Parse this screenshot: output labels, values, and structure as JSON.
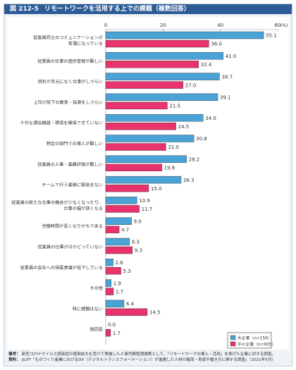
{
  "figure": {
    "number": "図 212-5",
    "title": "リモートワークを活用する上での課題（複数回答）"
  },
  "chart_data": {
    "type": "bar",
    "orientation": "horizontal",
    "unit": "(%)",
    "xlim": [
      0,
      60
    ],
    "xticks": [
      0,
      20,
      40,
      60
    ],
    "grid": false,
    "legend_position": "bottom-right",
    "categories": [
      [
        "従業員同士のコミュニケーションが",
        "希薄になっている"
      ],
      [
        "従業員の仕事の進捗管理が難しい"
      ],
      [
        "資料が手元になく仕事がしづらい"
      ],
      [
        "上司が部下の教育・指導をしづらい"
      ],
      [
        "十分な通信機器・環境を確保できていない"
      ],
      [
        "特定の部門での導入が難しい"
      ],
      [
        "従業員の人事・業績評価が難しい"
      ],
      [
        "チームで行う業務に馴染まない"
      ],
      [
        "従業員の新たな仕事の機会が少なくなったり、",
        "仕事の幅が狭くなる"
      ],
      [
        "労働時間が長くなりがちである"
      ],
      [
        "従業員の仕事がはかどっていない"
      ],
      [
        "従業員の会社への帰属意識が低下している"
      ],
      [
        "その他"
      ],
      [
        "特に課題はない"
      ],
      [
        "無回答"
      ]
    ],
    "series": [
      {
        "name": "大企業（n=156）",
        "color": "#4aa3d6",
        "values": [
          55.1,
          41.0,
          39.7,
          39.1,
          34.0,
          30.8,
          28.2,
          26.3,
          10.9,
          9.0,
          8.3,
          2.6,
          1.9,
          6.4,
          0.0
        ]
      },
      {
        "name": "中小企業（n=905）",
        "color": "#e8336d",
        "values": [
          36.0,
          32.4,
          27.0,
          21.5,
          24.5,
          21.0,
          19.6,
          15.0,
          11.7,
          4.7,
          9.3,
          5.3,
          2.7,
          14.5,
          1.7
        ]
      }
    ]
  },
  "notes": [
    {
      "label": "備考：",
      "text": "新型コロナウイルス感染症の感染拡大を受けて実施した人事労務管理施策として、「リモートワークの導入・活用」を挙げた企業に対する調査。"
    },
    {
      "label": "資料：",
      "text": "JILPT「ものづくり産業におけるDX（デジタルトランスフォーメーション）が進展した人材の確保・育成や働き方に関する調査」（2021年5月）"
    }
  ]
}
